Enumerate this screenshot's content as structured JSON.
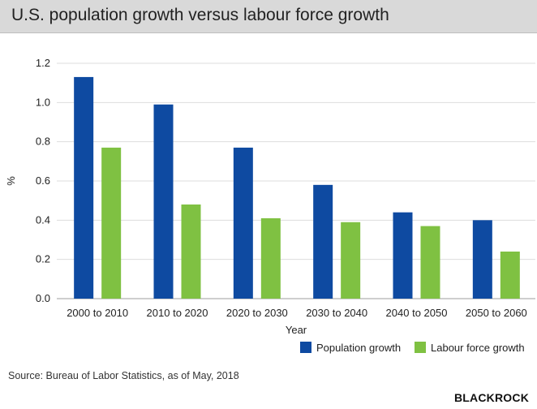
{
  "header": {
    "title": "U.S. population growth versus labour force growth"
  },
  "footer": {
    "source": "Source: Bureau of Labor Statistics, as of May, 2018",
    "brand": "BLACKROCK"
  },
  "colors": {
    "population": "#0e4aa1",
    "labour": "#7fc142",
    "grid": "#dddddd",
    "header_bg": "#d9d9d9"
  },
  "chart_data": {
    "type": "bar",
    "title": "U.S. population growth versus labour force growth",
    "xlabel": "Year",
    "ylabel": "%",
    "ylim": [
      0,
      1.2
    ],
    "yticks": [
      "0.0",
      "0.2",
      "0.4",
      "0.6",
      "0.8",
      "1.0",
      "1.2"
    ],
    "grid": true,
    "legend_position": "bottom-right",
    "categories": [
      "2000 to 2010",
      "2010 to 2020",
      "2020 to 2030",
      "2030 to 2040",
      "2040 to 2050",
      "2050 to 2060"
    ],
    "series": [
      {
        "name": "Population growth",
        "color": "#0e4aa1",
        "values": [
          1.13,
          0.99,
          0.77,
          0.58,
          0.44,
          0.4
        ]
      },
      {
        "name": "Labour force growth",
        "color": "#7fc142",
        "values": [
          0.77,
          0.48,
          0.41,
          0.39,
          0.37,
          0.24
        ]
      }
    ]
  }
}
